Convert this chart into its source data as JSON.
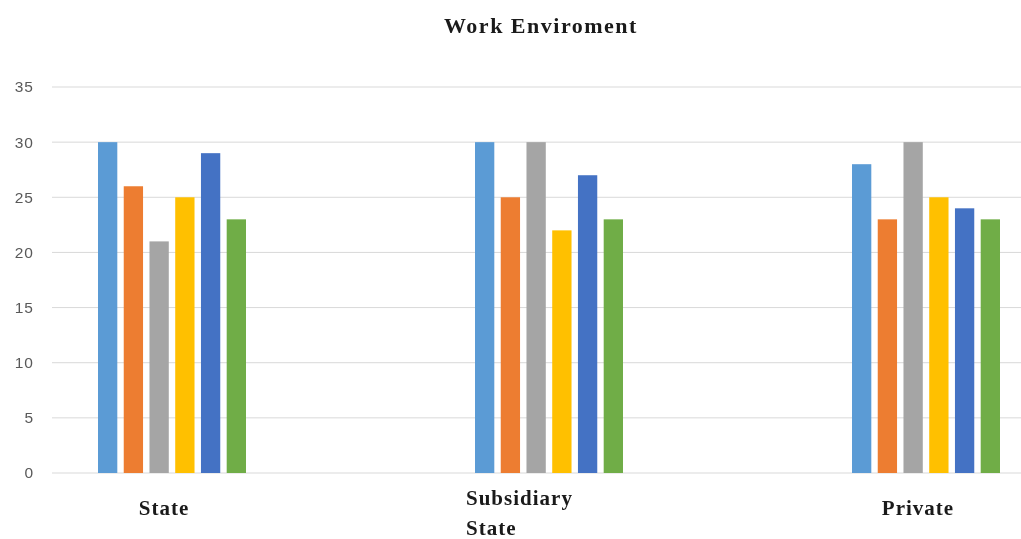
{
  "chart_data": {
    "type": "bar",
    "title": "Work Enviroment",
    "categories": [
      "State",
      "Subsidiary State",
      "Private"
    ],
    "series": [
      {
        "color": "#5b9bd5",
        "values": [
          30,
          30,
          28
        ]
      },
      {
        "color": "#ed7d31",
        "values": [
          26,
          25,
          23
        ]
      },
      {
        "color": "#a5a5a5",
        "values": [
          21,
          30,
          30
        ]
      },
      {
        "color": "#ffc000",
        "values": [
          25,
          22,
          25
        ]
      },
      {
        "color": "#4472c4",
        "values": [
          29,
          27,
          24
        ]
      },
      {
        "color": "#70ad47",
        "values": [
          23,
          23,
          23
        ]
      }
    ],
    "ylim": [
      0,
      35
    ],
    "yticks": [
      0,
      5,
      10,
      15,
      20,
      25,
      30,
      35
    ],
    "grid": "y"
  }
}
